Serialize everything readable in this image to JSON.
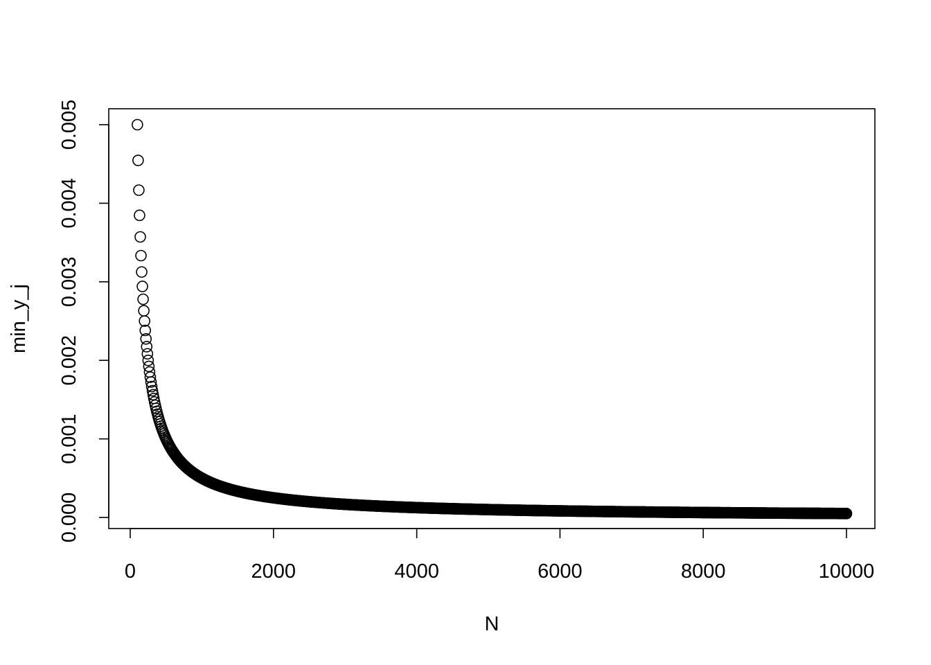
{
  "chart_data": {
    "type": "scatter",
    "title": "",
    "xlabel": "N",
    "ylabel": "min_y_j",
    "xlim": [
      0,
      10000
    ],
    "ylim": [
      0,
      0.005
    ],
    "x_ticks": [
      "0",
      "2000",
      "4000",
      "6000",
      "8000",
      "10000"
    ],
    "y_ticks": [
      "0.000",
      "0.001",
      "0.002",
      "0.003",
      "0.004",
      "0.005"
    ],
    "grid": false,
    "legend": "none",
    "series": [
      {
        "marker": "open-circle",
        "color": "#000000",
        "x_start": 100,
        "x_end": 10000,
        "x_step": 10,
        "relation": "y = 0.5 / x",
        "sample_points": [
          {
            "x": 100,
            "y": 0.005
          },
          {
            "x": 110,
            "y": 0.004545
          },
          {
            "x": 120,
            "y": 0.004167
          },
          {
            "x": 130,
            "y": 0.003846
          },
          {
            "x": 140,
            "y": 0.003571
          },
          {
            "x": 150,
            "y": 0.003333
          },
          {
            "x": 200,
            "y": 0.0025
          },
          {
            "x": 500,
            "y": 0.001
          },
          {
            "x": 1000,
            "y": 0.0005
          },
          {
            "x": 2000,
            "y": 0.00025
          },
          {
            "x": 5000,
            "y": 0.0001
          },
          {
            "x": 10000,
            "y": 5e-05
          }
        ]
      }
    ]
  }
}
